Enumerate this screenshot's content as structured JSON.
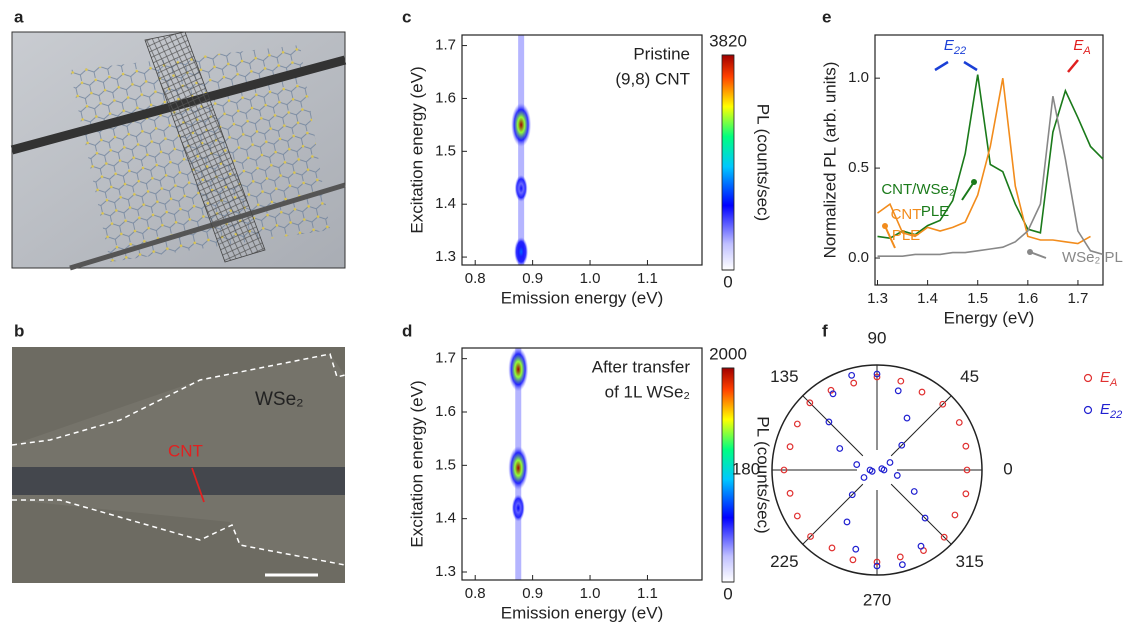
{
  "panel_labels": [
    "a",
    "b",
    "c",
    "d",
    "e",
    "f"
  ],
  "image_b": {
    "material": "WSe₂",
    "tube": "CNT"
  },
  "chart_data": [
    {
      "type": "heatmap",
      "text": [
        "Pristine",
        "(9,8) CNT"
      ],
      "xlabel": "Emission energy (eV)",
      "ylabel": "Excitation energy (eV)",
      "clabel": "PL (counts/sec)",
      "x": [
        0.88,
        0.88,
        0.88
      ],
      "y": [
        1.55,
        1.43,
        1.31
      ],
      "values": [
        3820,
        1100,
        1500
      ],
      "xlim": [
        0.777,
        1.195
      ],
      "ylim": [
        1.285,
        1.72
      ],
      "xticks": [
        0.8,
        0.9,
        {
          "value": 1,
          "label": "1.0"
        },
        1.1
      ],
      "yticks": [
        1.3,
        1.4,
        1.5,
        1.6,
        1.7
      ],
      "clim": [
        0,
        3820
      ],
      "cticks": [
        0,
        3820
      ]
    },
    {
      "type": "heatmap",
      "text": [
        "After transfer",
        "of 1L WSe₂"
      ],
      "xlabel": "Emission energy (eV)",
      "ylabel": "Excitation energy (eV)",
      "clabel": "PL (counts/sec)",
      "x": [
        0.875,
        0.875,
        0.875
      ],
      "y": [
        1.68,
        1.495,
        1.42
      ],
      "values": [
        2000,
        2000,
        600
      ],
      "xlim": [
        0.777,
        1.195
      ],
      "ylim": [
        1.285,
        1.72
      ],
      "xticks": [
        0.8,
        0.9,
        {
          "value": 1,
          "label": "1.0"
        },
        1.1
      ],
      "yticks": [
        1.3,
        1.4,
        1.5,
        1.6,
        1.7
      ],
      "clim": [
        0,
        2000
      ],
      "cticks": [
        0,
        2000
      ]
    },
    {
      "type": "line",
      "xlabel": "Energy (eV)",
      "ylabel": "Normalized PL (arb. units)",
      "x": [
        1.3,
        1.325,
        1.35,
        1.375,
        1.4,
        1.425,
        1.45,
        1.475,
        1.5,
        1.525,
        1.55,
        1.575,
        1.6,
        1.625,
        1.65,
        1.675,
        1.7,
        1.725,
        1.75
      ],
      "series": [
        {
          "label": [
            "CNT/WSe₂",
            "PLE"
          ],
          "color": "#1a7a1a",
          "values": [
            0.12,
            0.11,
            0.15,
            0.13,
            0.18,
            0.21,
            0.32,
            0.58,
            1.02,
            0.52,
            0.48,
            0.3,
            0.16,
            0.14,
            0.7,
            0.93,
            0.78,
            0.62,
            0.55
          ]
        },
        {
          "label": [
            "CNT",
            "PLE"
          ],
          "color": "#f28c1c",
          "values": [
            0.25,
            0.3,
            0.14,
            0.12,
            0.17,
            0.15,
            0.17,
            0.2,
            0.35,
            0.62,
            1.0,
            0.4,
            0.12,
            0.1,
            0.1,
            0.09,
            0.08,
            0.12,
            null
          ]
        },
        {
          "label": [
            "WSe₂ PL"
          ],
          "color": "#888888",
          "values": [
            0.01,
            0.01,
            0.01,
            0.02,
            0.02,
            0.02,
            0.03,
            0.03,
            0.04,
            0.05,
            0.06,
            0.09,
            0.15,
            0.3,
            0.9,
            0.55,
            0.15,
            0.04,
            0.02
          ]
        }
      ],
      "markers": [
        {
          "text": "E",
          "sub": "22",
          "color": "#1a3fd6"
        },
        {
          "text": "E",
          "sub": "A",
          "color": "#e02020"
        }
      ],
      "xlim": [
        1.295,
        1.75
      ],
      "ylim": [
        -0.15,
        1.24
      ],
      "xticks": [
        1.3,
        1.4,
        1.5,
        1.6,
        1.7
      ],
      "yticks": [
        {
          "value": 0,
          "label": "0.0"
        },
        0.5,
        {
          "value": 1,
          "label": "1.0"
        }
      ]
    },
    {
      "type": "polar",
      "theta": [
        0,
        15,
        30,
        45,
        60,
        75,
        90,
        105,
        120,
        135,
        150,
        165,
        180,
        195,
        210,
        225,
        240,
        255,
        270,
        285,
        300,
        315,
        330,
        345
      ],
      "series": [
        {
          "name": "E",
          "name_sub": "A",
          "color": "#e03030",
          "values": [
            0.9,
            0.92,
            0.95,
            0.93,
            0.9,
            0.92,
            0.93,
            0.9,
            0.92,
            0.95,
            0.92,
            0.9,
            0.93,
            0.9,
            0.92,
            0.94,
            0.9,
            0.93,
            0.92,
            0.9,
            0.93,
            0.95,
            0.9,
            0.92
          ]
        },
        {
          "name": "E",
          "name_sub": "22",
          "color": "#2020d0",
          "values": [
            0.07,
            0.05,
            0.15,
            0.35,
            0.6,
            0.82,
            0.96,
            0.98,
            0.88,
            0.68,
            0.43,
            0.21,
            0.07,
            0.05,
            0.15,
            0.35,
            0.6,
            0.82,
            0.96,
            0.98,
            0.88,
            0.68,
            0.43,
            0.21
          ]
        }
      ],
      "thetaticks": [
        0,
        45,
        90,
        135,
        180,
        225,
        270,
        315
      ],
      "rlim": [
        0,
        1.05
      ]
    }
  ]
}
